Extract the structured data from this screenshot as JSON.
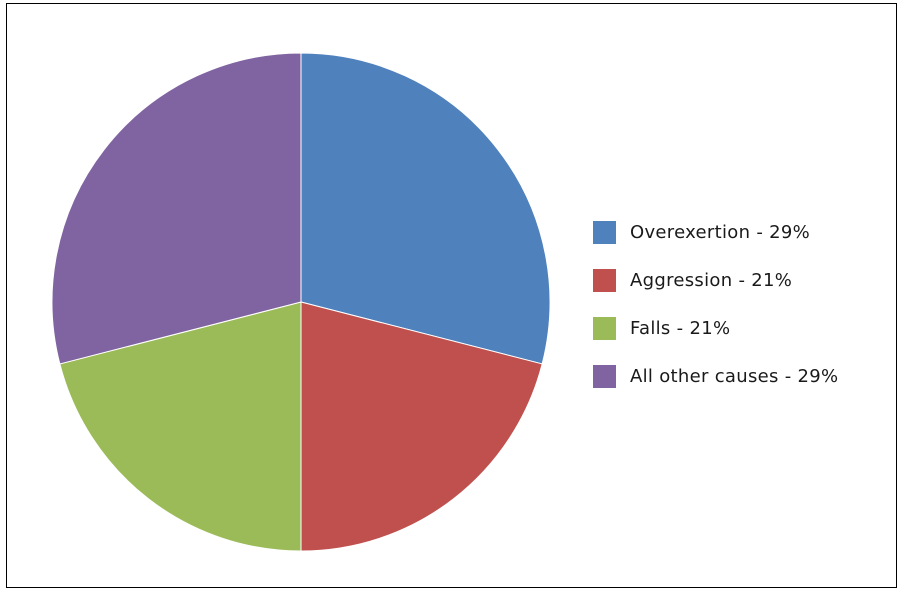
{
  "chart_data": {
    "type": "pie",
    "title": "",
    "legend_position": "right",
    "slices": [
      {
        "label": "Overexertion - 29%",
        "value": 29,
        "color": "#4f81bd"
      },
      {
        "label": "Aggression - 21%",
        "value": 21,
        "color": "#c0504d"
      },
      {
        "label": "Falls - 21%",
        "value": 21,
        "color": "#9bbb59"
      },
      {
        "label": "All other causes - 29%",
        "value": 29,
        "color": "#8064a2"
      }
    ]
  }
}
